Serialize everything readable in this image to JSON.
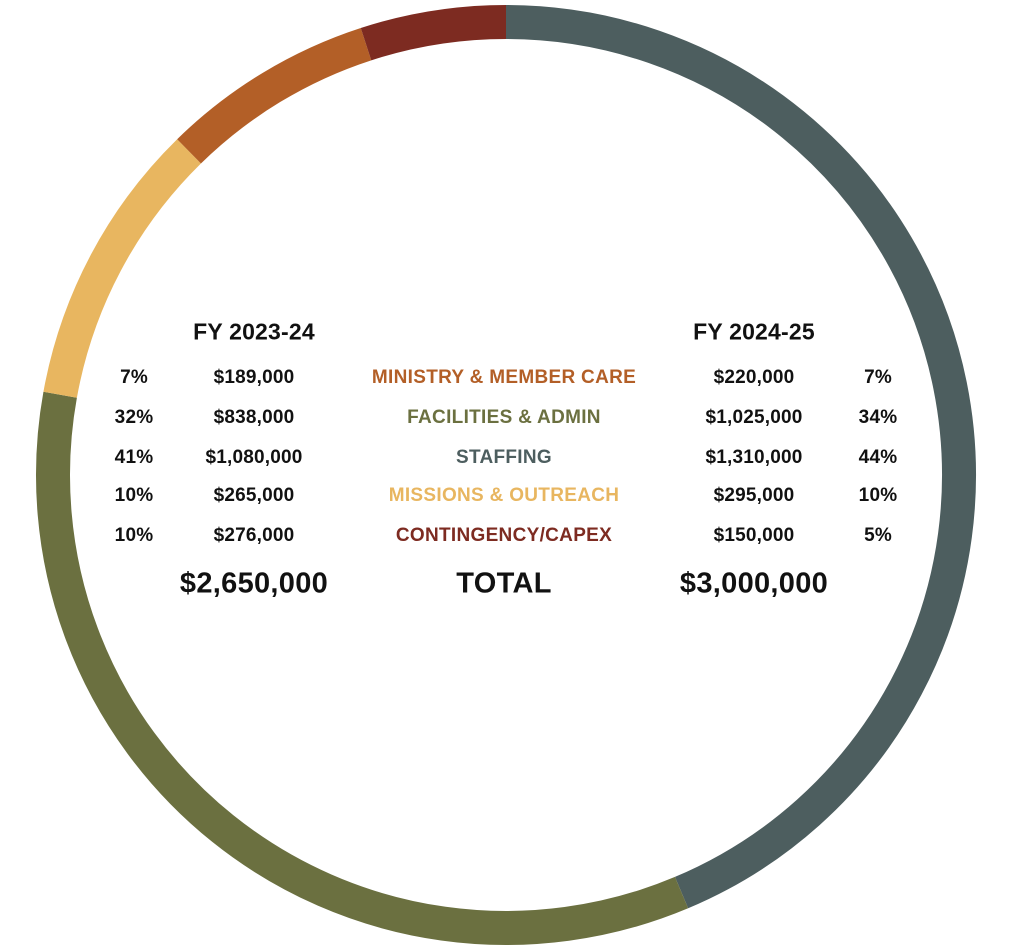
{
  "chart_data": {
    "type": "pie",
    "style": "donut-ring",
    "ring_series": "FY 2024-25",
    "headers": [
      "FY 2023-24",
      "FY 2024-25"
    ],
    "categories": [
      {
        "name": "MINISTRY & MEMBER CARE",
        "color": "#b35f27",
        "fy2324_pct": "7%",
        "fy2324_amount": "$189,000",
        "fy2425_amount": "$220,000",
        "fy2425_pct": "7%",
        "value": 220000
      },
      {
        "name": "FACILITIES & ADMIN",
        "color": "#6b7040",
        "fy2324_pct": "32%",
        "fy2324_amount": "$838,000",
        "fy2425_amount": "$1,025,000",
        "fy2425_pct": "34%",
        "value": 1025000
      },
      {
        "name": "STAFFING",
        "color": "#4d5e5f",
        "fy2324_pct": "41%",
        "fy2324_amount": "$1,080,000",
        "fy2425_amount": "$1,310,000",
        "fy2425_pct": "44%",
        "value": 1310000
      },
      {
        "name": "MISSIONS & OUTREACH",
        "color": "#e8b660",
        "fy2324_pct": "10%",
        "fy2324_amount": "$265,000",
        "fy2425_amount": "$295,000",
        "fy2425_pct": "10%",
        "value": 295000
      },
      {
        "name": "CONTINGENCY/CAPEX",
        "color": "#7d2b21",
        "fy2324_pct": "10%",
        "fy2324_amount": "$276,000",
        "fy2425_amount": "$150,000",
        "fy2425_pct": "5%",
        "value": 150000
      }
    ],
    "ring_order": [
      2,
      1,
      3,
      0,
      4
    ],
    "total_label": "TOTAL",
    "fy2324_total": "$2,650,000",
    "fy2425_total": "$3,000,000"
  }
}
